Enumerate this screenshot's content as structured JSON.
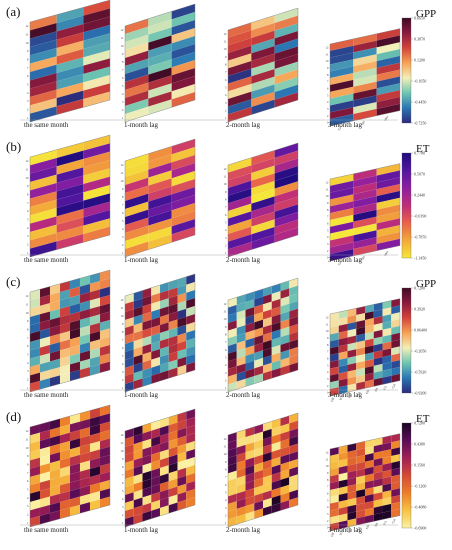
{
  "chart_data": [
    {
      "type": "heatmap",
      "panel": "(a)",
      "colorbar": {
        "title": "GPP",
        "ticks": [
          "0.6650",
          "0.3870",
          "0.1200",
          "-0.1650",
          "-0.4450",
          "-0.7250"
        ],
        "range": [
          -0.725,
          0.665
        ],
        "colormap": [
          "#2c2a7a",
          "#2a77b4",
          "#6fc5b1",
          "#f3efb8",
          "#f7a354",
          "#d4443b",
          "#8a1a3e",
          "#3d0b25"
        ]
      },
      "subplots": [
        {
          "label": "the same month",
          "cols": 3,
          "rows": 12
        },
        {
          "label": "1-month lag",
          "cols": 3,
          "rows": 12
        },
        {
          "label": "2-month lag",
          "cols": 3,
          "rows": 12
        },
        {
          "label": "3-month lag",
          "cols": 3,
          "rows": 12
        }
      ],
      "row_ticks": [
        "1",
        "2",
        "3",
        "4",
        "5",
        "6",
        "7",
        "8",
        "9",
        "10",
        "11",
        "12"
      ],
      "col_ticks": [
        "Cul",
        "Shr",
        "Mea"
      ]
    },
    {
      "type": "heatmap",
      "panel": "(b)",
      "colorbar": {
        "title": "ET",
        "ticks": [
          "0.7780",
          "0.5070",
          "0.2440",
          "-0.0190",
          "-0.7870",
          "-1.1450"
        ],
        "range": [
          -1.145,
          0.778
        ],
        "colormap": [
          "#f5e83a",
          "#f3a93a",
          "#e9624a",
          "#c02e77",
          "#8d1fa0",
          "#52169f",
          "#1f0c7d"
        ]
      },
      "subplots": [
        {
          "label": "the same month",
          "cols": 3,
          "rows": 12
        },
        {
          "label": "1-month lag",
          "cols": 3,
          "rows": 12
        },
        {
          "label": "2-month lag",
          "cols": 3,
          "rows": 12
        },
        {
          "label": "3-month lag",
          "cols": 3,
          "rows": 12
        }
      ],
      "row_ticks": [
        "1",
        "2",
        "3",
        "4",
        "5",
        "6",
        "7",
        "8",
        "9",
        "10",
        "11",
        "12"
      ],
      "col_ticks": [
        "Cul",
        "Shr",
        "Mea"
      ]
    },
    {
      "type": "heatmap",
      "panel": "(c)",
      "colorbar": {
        "title": "GPP",
        "ticks": [
          "0.7200",
          "0.3920",
          "0.06400",
          "-0.2650",
          "-0.5920",
          "-0.9200"
        ],
        "range": [
          -0.92,
          0.72
        ],
        "colormap": [
          "#2c2a7a",
          "#2a77b4",
          "#6fc5b1",
          "#f3efb8",
          "#f7a354",
          "#d4443b",
          "#8a1a3e",
          "#3d0b25"
        ]
      },
      "subplots": [
        {
          "label": "the same month",
          "cols": 8,
          "rows": 12
        },
        {
          "label": "1-month lag",
          "cols": 8,
          "rows": 12
        },
        {
          "label": "2-month lag",
          "cols": 8,
          "rows": 12
        },
        {
          "label": "3-month lag",
          "cols": 8,
          "rows": 12
        }
      ],
      "row_ticks": [
        "1",
        "2",
        "3",
        "4",
        "5",
        "6",
        "7",
        "8",
        "9",
        "10",
        "11",
        "12"
      ],
      "col_ticks": [
        "DB",
        "WS",
        "CO",
        "SA",
        "GR",
        "SH",
        "FO",
        "Cul"
      ]
    },
    {
      "type": "heatmap",
      "panel": "(d)",
      "colorbar": {
        "title": "ET",
        "ticks": [
          "0.7200",
          "0.4380",
          "0.1560",
          "-0.1260",
          "-0.4080",
          "-0.6900"
        ],
        "range": [
          -0.69,
          0.72
        ],
        "colormap": [
          "#fbf2a6",
          "#f7c243",
          "#ee7e2a",
          "#d44a36",
          "#a11f55",
          "#5a0d57",
          "#1a0424"
        ]
      },
      "subplots": [
        {
          "label": "the same month",
          "cols": 8,
          "rows": 12
        },
        {
          "label": "1-month lag",
          "cols": 8,
          "rows": 12
        },
        {
          "label": "2-month lag",
          "cols": 8,
          "rows": 12
        },
        {
          "label": "3-month lag",
          "cols": 8,
          "rows": 12
        }
      ],
      "row_ticks": [
        "1",
        "2",
        "3",
        "4",
        "5",
        "6",
        "7",
        "8",
        "9",
        "10",
        "11",
        "12"
      ],
      "col_ticks": [
        "DB",
        "WS",
        "CO",
        "SA",
        "GR",
        "SH",
        "FO",
        "Cul"
      ]
    }
  ]
}
